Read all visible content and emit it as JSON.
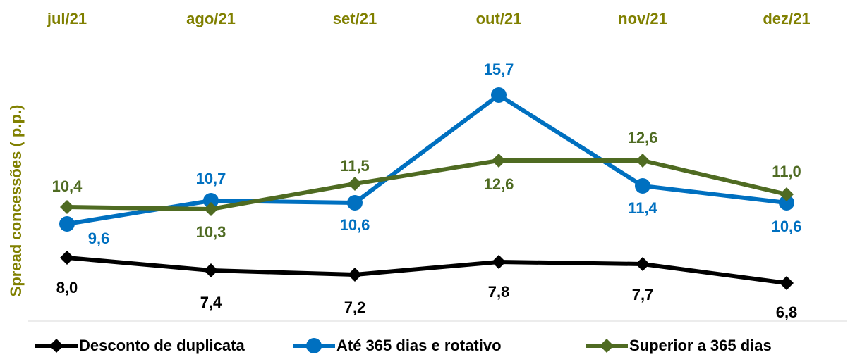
{
  "chart_data": {
    "type": "line",
    "y_label": "Spread concessões ( p.p.)",
    "categories": [
      "jul/21",
      "ago/21",
      "set/21",
      "out/21",
      "nov/21",
      "dez/21"
    ],
    "ylim": [
      5,
      18
    ],
    "series": [
      {
        "name": "Desconto de duplicata",
        "color": "#000000",
        "marker": "diamond",
        "values": [
          8.0,
          7.4,
          7.2,
          7.8,
          7.7,
          6.8
        ],
        "value_labels": [
          "8,0",
          "7,4",
          "7,2",
          "7,8",
          "7,7",
          "6,8"
        ]
      },
      {
        "name": "Até 365 dias e rotativo",
        "color": "#0070c0",
        "marker": "circle",
        "values": [
          9.6,
          10.7,
          10.6,
          15.7,
          11.4,
          10.6
        ],
        "value_labels": [
          "9,6",
          "10,7",
          "10,6",
          "15,7",
          "11,4",
          "10,6"
        ]
      },
      {
        "name": "Superior a 365 dias",
        "color": "#4f6b22",
        "marker": "diamond",
        "values": [
          10.4,
          10.3,
          11.5,
          12.6,
          12.6,
          11.0
        ],
        "value_labels": [
          "10,4",
          "10,3",
          "11,5",
          "12,6",
          "12,6",
          "11,0"
        ]
      }
    ]
  }
}
